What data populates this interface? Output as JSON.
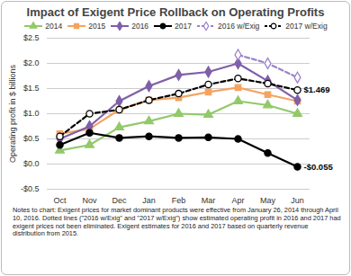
{
  "chart_data": {
    "type": "line",
    "title": "Impact of Exigent Price Rollback on Operating Profits",
    "y_label": "Operating profit in $ billions",
    "categories": [
      "Oct",
      "Nov",
      "Dec",
      "Jan",
      "Feb",
      "Mar",
      "Apr",
      "May",
      "Jun"
    ],
    "series": [
      {
        "name": "2014",
        "color": "#92c96a",
        "marker": "triangle",
        "line_style": "solid",
        "values": [
          0.27,
          0.38,
          0.73,
          0.85,
          1.0,
          0.98,
          1.25,
          1.17,
          1.0
        ]
      },
      {
        "name": "2015",
        "color": "#f4a460",
        "marker": "square",
        "line_style": "solid",
        "values": [
          0.6,
          0.7,
          1.08,
          1.27,
          1.32,
          1.43,
          1.52,
          1.38,
          1.25
        ]
      },
      {
        "name": "2016",
        "color": "#7e5fa8",
        "marker": "diamond",
        "line_style": "solid",
        "values": [
          0.5,
          0.75,
          1.25,
          1.55,
          1.77,
          1.83,
          2.0,
          1.65,
          1.27
        ]
      },
      {
        "name": "2017",
        "color": "#000000",
        "marker": "circle",
        "line_style": "solid",
        "values": [
          0.38,
          0.62,
          0.52,
          0.55,
          0.52,
          0.53,
          0.5,
          0.22,
          -0.055
        ]
      },
      {
        "name": "2016 w/Exig",
        "color": "#9b82cc",
        "marker": "diamond-open",
        "line_style": "dashed",
        "values": [
          null,
          null,
          null,
          null,
          null,
          null,
          2.17,
          2.0,
          1.72
        ]
      },
      {
        "name": "2017 w/Exig",
        "color": "#000000",
        "marker": "circle-open",
        "line_style": "dashed",
        "values": [
          0.55,
          1.0,
          1.08,
          1.27,
          1.4,
          1.58,
          1.7,
          1.6,
          1.469
        ]
      }
    ],
    "ylim": [
      -0.5,
      2.5
    ],
    "yticks": [
      {
        "value": -0.5,
        "label": "-$0.5"
      },
      {
        "value": 0,
        "label": "$0.0"
      },
      {
        "value": 0.5,
        "label": "$0.5"
      },
      {
        "value": 1,
        "label": "$1.0"
      },
      {
        "value": 1.5,
        "label": "$1.5"
      },
      {
        "value": 2,
        "label": "$2.0"
      },
      {
        "value": 2.5,
        "label": "$2.5"
      }
    ],
    "grid": true,
    "legend": "top",
    "annotations": [
      {
        "text": "$1.469",
        "x": "Jun",
        "y": 1.469
      },
      {
        "text": "-$0.055",
        "x": "Jun",
        "y": -0.055
      }
    ],
    "notes": "Notes to chart: Exigent prices for market dominant products were effective from January 26, 2014 through April 10, 2016. Dotted lines (\"2016 w/Exig\" and \"2017 w/Exig\") show estimated operating profit in 2016 and 2017 had exigent prices not been eliminated. Exigent estimates for 2016 and 2017 based on quarterly revenue distribution from 2015."
  }
}
